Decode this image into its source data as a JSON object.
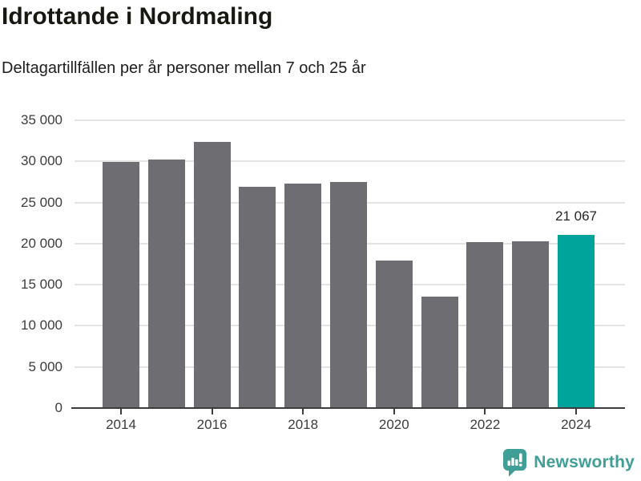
{
  "header": {
    "title": "Idrottande i Nordmaling",
    "subtitle": "Deltagartillfällen per år personer mellan 7 och 25 år"
  },
  "chart_data": {
    "type": "bar",
    "title": "Idrottande i Nordmaling",
    "subtitle": "Deltagartillfällen per år personer mellan 7 och 25 år",
    "categories": [
      "2014",
      "2015",
      "2016",
      "2017",
      "2018",
      "2019",
      "2020",
      "2021",
      "2022",
      "2023",
      "2024"
    ],
    "values": [
      29900,
      30200,
      32400,
      26900,
      27300,
      27500,
      17950,
      13600,
      20200,
      20250,
      21067
    ],
    "xlabel": "",
    "ylabel": "",
    "ylim": [
      0,
      35000
    ],
    "grid": "horizontal",
    "legend": "none",
    "y_ticks": [
      {
        "label": "0",
        "value": 0
      },
      {
        "label": "5 000",
        "value": 5000
      },
      {
        "label": "10 000",
        "value": 10000
      },
      {
        "label": "15 000",
        "value": 15000
      },
      {
        "label": "20 000",
        "value": 20000
      },
      {
        "label": "25 000",
        "value": 25000
      },
      {
        "label": "30 000",
        "value": 30000
      },
      {
        "label": "35 000",
        "value": 35000
      }
    ],
    "x_ticks": [
      {
        "label": "2014",
        "index": 0
      },
      {
        "label": "2016",
        "index": 2
      },
      {
        "label": "2018",
        "index": 4
      },
      {
        "label": "2020",
        "index": 6
      },
      {
        "label": "2022",
        "index": 8
      },
      {
        "label": "2024",
        "index": 10
      }
    ],
    "annotations": [
      {
        "bar_index": 10,
        "text": "21 067"
      }
    ],
    "bar_color": "#6d6d72",
    "highlight_index": 10,
    "highlight_color": "#00a49a"
  },
  "footer": {
    "brand": "Newsworthy",
    "brand_color": "#3f9e96",
    "logo_icon": "bar-chart-speech-bubble-icon"
  }
}
